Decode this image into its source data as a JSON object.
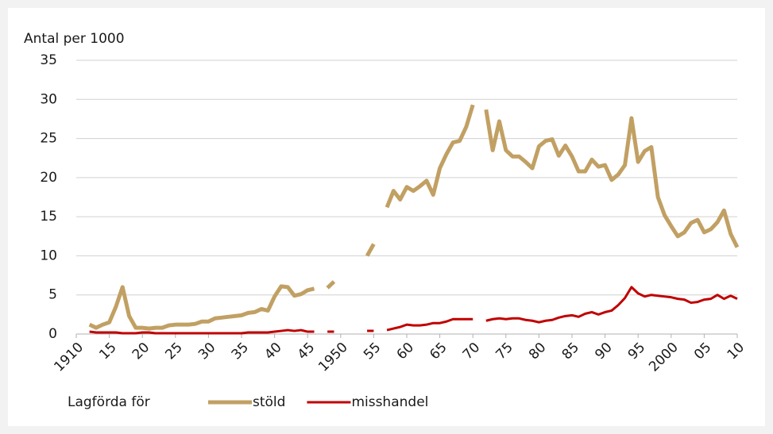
{
  "chart_data": {
    "type": "line",
    "ylabel": "Antal per 1000",
    "legend_title": "Lagförda för",
    "xlim": [
      1910,
      2010
    ],
    "xticks": [
      1910,
      {
        "value": 1915,
        "label": "15"
      },
      {
        "value": 1920,
        "label": "20"
      },
      {
        "value": 1925,
        "label": "25"
      },
      {
        "value": 1930,
        "label": "30"
      },
      {
        "value": 1935,
        "label": "35"
      },
      {
        "value": 1940,
        "label": "40"
      },
      {
        "value": 1945,
        "label": "45"
      },
      1950,
      {
        "value": 1955,
        "label": "55"
      },
      {
        "value": 1960,
        "label": "60"
      },
      {
        "value": 1965,
        "label": "65"
      },
      {
        "value": 1970,
        "label": "70"
      },
      {
        "value": 1975,
        "label": "75"
      },
      {
        "value": 1980,
        "label": "80"
      },
      {
        "value": 1985,
        "label": "85"
      },
      {
        "value": 1990,
        "label": "90"
      },
      {
        "value": 1995,
        "label": "95"
      },
      2000,
      {
        "value": 2005,
        "label": "05"
      },
      {
        "value": 2010,
        "label": "10"
      }
    ],
    "ylim": [
      0,
      35
    ],
    "yticks": [
      0,
      5,
      10,
      15,
      20,
      25,
      30,
      35
    ],
    "grid": true,
    "legend": "bottom",
    "x": [
      1912,
      1913,
      1914,
      1915,
      1916,
      1917,
      1918,
      1919,
      1920,
      1921,
      1922,
      1923,
      1924,
      1925,
      1926,
      1927,
      1928,
      1929,
      1930,
      1931,
      1932,
      1933,
      1934,
      1935,
      1936,
      1937,
      1938,
      1939,
      1940,
      1941,
      1942,
      1943,
      1944,
      1945,
      1946,
      1947,
      1948,
      1949,
      1950,
      1951,
      1952,
      1953,
      1954,
      1955,
      1956,
      1957,
      1958,
      1959,
      1960,
      1961,
      1962,
      1963,
      1964,
      1965,
      1966,
      1967,
      1968,
      1969,
      1970,
      1971,
      1972,
      1973,
      1974,
      1975,
      1976,
      1977,
      1978,
      1979,
      1980,
      1981,
      1982,
      1983,
      1984,
      1985,
      1986,
      1987,
      1988,
      1989,
      1990,
      1991,
      1992,
      1993,
      1994,
      1995,
      1996,
      1997,
      1998,
      1999,
      2000,
      2001,
      2002,
      2003,
      2004,
      2005,
      2006,
      2007,
      2008,
      2009,
      2010
    ],
    "series": [
      {
        "name": "stöld",
        "color": "#c1a063",
        "values": [
          1.2,
          0.8,
          1.2,
          1.5,
          3.5,
          6.0,
          2.3,
          0.8,
          0.8,
          0.7,
          0.8,
          0.8,
          1.1,
          1.2,
          1.2,
          1.2,
          1.3,
          1.6,
          1.6,
          2.0,
          2.1,
          2.2,
          2.3,
          2.4,
          2.7,
          2.8,
          3.2,
          3.0,
          4.8,
          6.1,
          6.0,
          4.9,
          5.1,
          5.6,
          5.8,
          null,
          5.9,
          6.7,
          null,
          null,
          null,
          null,
          10.0,
          11.5,
          null,
          16.2,
          18.3,
          17.2,
          18.8,
          18.3,
          18.9,
          19.6,
          17.8,
          21.2,
          23.0,
          24.5,
          24.7,
          26.5,
          29.3,
          null,
          28.7,
          23.5,
          27.2,
          23.5,
          22.7,
          22.7,
          22.0,
          21.2,
          24.0,
          24.7,
          24.9,
          22.8,
          24.1,
          22.7,
          20.8,
          20.8,
          22.3,
          21.4,
          21.6,
          19.7,
          20.4,
          21.6,
          27.6,
          22.0,
          23.4,
          23.9,
          17.5,
          15.2,
          13.8,
          12.5,
          13.0,
          14.2,
          14.6,
          13.0,
          13.4,
          14.3,
          15.8,
          12.8,
          11.1
        ]
      },
      {
        "name": "misshandel",
        "color": "#c00000",
        "values": [
          0.3,
          0.2,
          0.2,
          0.2,
          0.2,
          0.1,
          0.1,
          0.1,
          0.2,
          0.2,
          0.1,
          0.1,
          0.1,
          0.1,
          0.1,
          0.1,
          0.1,
          0.1,
          0.1,
          0.1,
          0.1,
          0.1,
          0.1,
          0.1,
          0.2,
          0.2,
          0.2,
          0.2,
          0.3,
          0.4,
          0.5,
          0.4,
          0.5,
          0.3,
          0.3,
          null,
          0.3,
          0.3,
          null,
          null,
          null,
          null,
          0.4,
          0.4,
          null,
          0.5,
          0.7,
          0.9,
          1.2,
          1.1,
          1.1,
          1.2,
          1.4,
          1.4,
          1.6,
          1.9,
          1.9,
          1.9,
          1.9,
          null,
          1.7,
          1.9,
          2.0,
          1.9,
          2.0,
          2.0,
          1.8,
          1.7,
          1.5,
          1.7,
          1.8,
          2.1,
          2.3,
          2.4,
          2.2,
          2.6,
          2.8,
          2.5,
          2.8,
          3.0,
          3.7,
          4.6,
          6.0,
          5.2,
          4.8,
          5.0,
          4.9,
          4.8,
          4.7,
          4.5,
          4.4,
          4.0,
          4.1,
          4.4,
          4.5,
          5.0,
          4.5,
          4.9,
          4.5
        ]
      }
    ]
  }
}
